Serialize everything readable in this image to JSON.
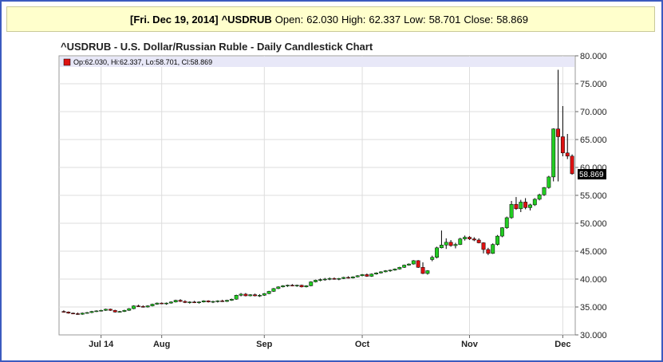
{
  "header": {
    "date": "[Fri. Dec 19, 2014]",
    "symbol": "^USDRUB",
    "open_label": "Open:",
    "open": "62.030",
    "high_label": "High:",
    "high": "62.337",
    "low_label": "Low:",
    "low": "58.701",
    "close_label": "Close:",
    "close": "58.869"
  },
  "chart_title": "^USDRUB - U.S. Dollar/Russian Ruble - Daily Candlestick Chart",
  "legend_text": "Op:62.030, Hi:62.337, Lo:58.701, Cl:58.869",
  "last_price_label": "58.869",
  "colors": {
    "up": "#22cc22",
    "down": "#dd1111",
    "border": "#3b5bbf",
    "header_bg": "#ffffcc",
    "legend_bg": "#e8e8f8"
  },
  "chart_data": {
    "type": "candlestick",
    "title": "^USDRUB - U.S. Dollar/Russian Ruble - Daily Candlestick Chart",
    "ylim": [
      30,
      80
    ],
    "yticks": [
      "30.000",
      "35.000",
      "40.000",
      "45.000",
      "50.000",
      "55.000",
      "60.000",
      "65.000",
      "70.000",
      "75.000",
      "80.000"
    ],
    "grid": true,
    "xticks": [
      {
        "label": "Jul 14",
        "idx": 8
      },
      {
        "label": "Aug",
        "idx": 21
      },
      {
        "label": "Sep",
        "idx": 43
      },
      {
        "label": "Oct",
        "idx": 64
      },
      {
        "label": "Nov",
        "idx": 87
      },
      {
        "label": "Dec",
        "idx": 107
      }
    ],
    "ohlc": [
      [
        34.2,
        34.4,
        34.0,
        34.1
      ],
      [
        34.1,
        34.2,
        33.8,
        33.9
      ],
      [
        33.9,
        34.0,
        33.7,
        33.8
      ],
      [
        33.8,
        34.0,
        33.6,
        33.7
      ],
      [
        33.7,
        34.0,
        33.6,
        33.9
      ],
      [
        33.9,
        34.1,
        33.8,
        34.0
      ],
      [
        34.0,
        34.3,
        33.9,
        34.2
      ],
      [
        34.2,
        34.4,
        34.1,
        34.3
      ],
      [
        34.3,
        34.5,
        34.2,
        34.4
      ],
      [
        34.4,
        34.7,
        34.3,
        34.6
      ],
      [
        34.6,
        34.7,
        34.3,
        34.4
      ],
      [
        34.4,
        34.5,
        34.0,
        34.1
      ],
      [
        34.1,
        34.3,
        34.0,
        34.2
      ],
      [
        34.2,
        34.5,
        34.1,
        34.4
      ],
      [
        34.4,
        34.8,
        34.3,
        34.7
      ],
      [
        34.7,
        35.3,
        34.6,
        35.2
      ],
      [
        35.2,
        35.4,
        35.0,
        35.1
      ],
      [
        35.1,
        35.3,
        34.9,
        35.0
      ],
      [
        35.0,
        35.3,
        34.9,
        35.2
      ],
      [
        35.2,
        35.6,
        35.1,
        35.5
      ],
      [
        35.5,
        35.8,
        35.4,
        35.7
      ],
      [
        35.7,
        35.8,
        35.5,
        35.6
      ],
      [
        35.6,
        35.8,
        35.4,
        35.7
      ],
      [
        35.7,
        36.0,
        35.6,
        35.9
      ],
      [
        35.9,
        36.3,
        35.8,
        36.2
      ],
      [
        36.2,
        36.4,
        35.9,
        36.0
      ],
      [
        36.0,
        36.2,
        35.7,
        35.8
      ],
      [
        35.8,
        36.0,
        35.6,
        35.9
      ],
      [
        35.9,
        36.1,
        35.7,
        35.8
      ],
      [
        35.8,
        36.0,
        35.6,
        35.9
      ],
      [
        35.9,
        36.2,
        35.8,
        36.1
      ],
      [
        36.1,
        36.2,
        35.8,
        35.9
      ],
      [
        35.9,
        36.1,
        35.7,
        36.0
      ],
      [
        36.0,
        36.2,
        35.8,
        36.1
      ],
      [
        36.1,
        36.3,
        35.9,
        36.0
      ],
      [
        36.0,
        36.3,
        35.9,
        36.2
      ],
      [
        36.2,
        36.5,
        36.1,
        36.4
      ],
      [
        36.4,
        37.2,
        36.3,
        37.1
      ],
      [
        37.1,
        37.5,
        36.9,
        37.3
      ],
      [
        37.3,
        37.5,
        36.9,
        37.0
      ],
      [
        37.0,
        37.3,
        36.9,
        37.2
      ],
      [
        37.2,
        37.4,
        36.9,
        37.0
      ],
      [
        37.0,
        37.3,
        36.8,
        37.1
      ],
      [
        37.1,
        37.5,
        37.0,
        37.4
      ],
      [
        37.4,
        37.9,
        37.3,
        37.8
      ],
      [
        37.8,
        38.4,
        37.7,
        38.3
      ],
      [
        38.3,
        38.7,
        38.2,
        38.6
      ],
      [
        38.6,
        38.9,
        38.5,
        38.8
      ],
      [
        38.8,
        39.0,
        38.6,
        38.9
      ],
      [
        38.9,
        39.1,
        38.7,
        38.8
      ],
      [
        38.8,
        39.0,
        38.6,
        38.9
      ],
      [
        38.9,
        39.0,
        38.5,
        38.6
      ],
      [
        38.6,
        38.9,
        38.5,
        38.8
      ],
      [
        38.8,
        39.6,
        38.7,
        39.5
      ],
      [
        39.5,
        39.9,
        39.4,
        39.8
      ],
      [
        39.8,
        40.1,
        39.6,
        39.9
      ],
      [
        39.9,
        40.2,
        39.7,
        40.0
      ],
      [
        40.0,
        40.3,
        39.8,
        40.1
      ],
      [
        40.1,
        40.3,
        39.9,
        40.0
      ],
      [
        40.0,
        40.2,
        39.8,
        40.1
      ],
      [
        40.1,
        40.4,
        40.0,
        40.3
      ],
      [
        40.3,
        40.5,
        40.1,
        40.2
      ],
      [
        40.2,
        40.5,
        40.1,
        40.4
      ],
      [
        40.4,
        40.7,
        40.3,
        40.6
      ],
      [
        40.6,
        40.9,
        40.5,
        40.8
      ],
      [
        40.8,
        41.0,
        40.4,
        40.5
      ],
      [
        40.5,
        41.0,
        40.4,
        40.9
      ],
      [
        40.9,
        41.2,
        40.8,
        41.1
      ],
      [
        41.1,
        41.4,
        41.0,
        41.3
      ],
      [
        41.3,
        41.6,
        41.2,
        41.5
      ],
      [
        41.5,
        41.7,
        41.3,
        41.6
      ],
      [
        41.6,
        41.9,
        41.5,
        41.8
      ],
      [
        41.8,
        42.2,
        41.7,
        42.1
      ],
      [
        42.1,
        42.6,
        42.0,
        42.5
      ],
      [
        42.5,
        42.8,
        42.4,
        42.7
      ],
      [
        42.7,
        43.4,
        42.6,
        43.3
      ],
      [
        43.3,
        43.4,
        42.0,
        42.1
      ],
      [
        42.1,
        43.0,
        40.9,
        41.0
      ],
      [
        41.0,
        41.6,
        40.8,
        41.5
      ],
      [
        43.5,
        44.2,
        43.2,
        43.9
      ],
      [
        43.9,
        45.8,
        43.7,
        45.6
      ],
      [
        45.6,
        48.7,
        45.5,
        46.1
      ],
      [
        46.1,
        47.3,
        45.4,
        46.6
      ],
      [
        46.6,
        47.0,
        45.8,
        46.0
      ],
      [
        46.0,
        46.5,
        45.5,
        46.2
      ],
      [
        46.2,
        47.4,
        46.1,
        47.2
      ],
      [
        47.2,
        47.8,
        46.9,
        47.5
      ],
      [
        47.5,
        47.7,
        47.0,
        47.2
      ],
      [
        47.2,
        47.5,
        46.8,
        47.0
      ],
      [
        47.0,
        47.3,
        46.4,
        46.5
      ],
      [
        46.5,
        46.6,
        44.6,
        45.3
      ],
      [
        45.3,
        45.6,
        44.3,
        44.6
      ],
      [
        44.6,
        46.4,
        44.5,
        46.2
      ],
      [
        46.2,
        47.9,
        46.0,
        47.7
      ],
      [
        47.7,
        49.3,
        47.5,
        49.2
      ],
      [
        49.2,
        51.2,
        49.0,
        51.0
      ],
      [
        51.0,
        54.0,
        50.8,
        53.4
      ],
      [
        53.4,
        54.7,
        52.4,
        52.6
      ],
      [
        52.6,
        54.2,
        52.0,
        53.8
      ],
      [
        53.8,
        54.5,
        52.5,
        52.8
      ],
      [
        52.8,
        53.5,
        52.3,
        53.3
      ],
      [
        53.3,
        54.5,
        53.1,
        54.3
      ],
      [
        54.3,
        55.3,
        54.1,
        55.1
      ],
      [
        55.1,
        56.5,
        54.9,
        56.4
      ],
      [
        56.4,
        58.5,
        56.2,
        58.3
      ],
      [
        58.3,
        67.0,
        57.5,
        66.9
      ],
      [
        66.9,
        77.5,
        57.5,
        65.5
      ],
      [
        65.5,
        71.0,
        62.0,
        62.6
      ],
      [
        62.6,
        66.0,
        61.5,
        62.03
      ],
      [
        62.03,
        62.34,
        58.7,
        58.87
      ]
    ]
  }
}
